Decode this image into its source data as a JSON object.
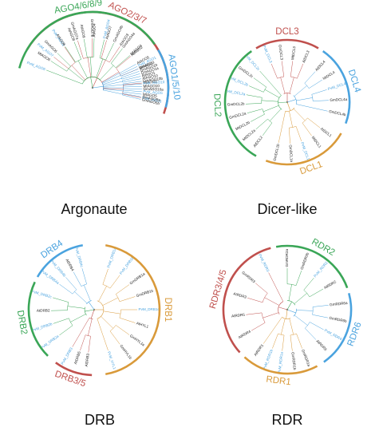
{
  "colors": {
    "red": "#c0504d",
    "blue": "#4aa3df",
    "green": "#3aa657",
    "orange": "#d99a3a",
    "text": "#222222",
    "leafBlue": "#4aa3df"
  },
  "panels": [
    {
      "title": "Argonaute",
      "clades": [
        {
          "label": "AGO2/3/7",
          "color": "red",
          "leaves": [
            "PvM_AGO7",
            "PvM_AGO2",
            "GmAGO7a",
            "GmAGO7b",
            "AtAGO7",
            "AtAGO3",
            "AtAGO2",
            "GmAGO3",
            "MtAGO2",
            "PvM_AGO3"
          ]
        },
        {
          "label": "AGO1/5/10",
          "color": "blue",
          "leaves": [
            "GmAGO5b",
            "GmAGO5a",
            "MtAGO5",
            "PvM_AGO5",
            "GmAGO10a",
            "MtAGO10",
            "PvM_AGO10",
            "GmAGO10b",
            "AtAGO10",
            "AtAGO1",
            "GmAGO1a",
            "GmAGO1b",
            "MtAGO1",
            "PvM_AGO1",
            "AtAGO5"
          ]
        },
        {
          "label": "AGO4/6/8/9",
          "color": "green",
          "leaves": [
            "MtAGO4",
            "GmAGO4a",
            "GmAGO4b",
            "PvM_AGO4",
            "AtAGO4",
            "AtAGO9",
            "AtAGO8",
            "AtAGO6",
            "GmAGO6",
            "MtAGO6",
            "PvM_AGO6"
          ]
        }
      ]
    },
    {
      "title": "Dicer-like",
      "clades": [
        {
          "label": "DCL3",
          "color": "red",
          "leaves": [
            "PvM_DCL3",
            "GmDCL3",
            "MtDCL3",
            "AtDCL3"
          ]
        },
        {
          "label": "DCL4",
          "color": "blue",
          "leaves": [
            "AtDCL4",
            "MtDCL4",
            "PvM_DCL4",
            "GmDCL4a",
            "GmDCL4b"
          ]
        },
        {
          "label": "DCL1",
          "color": "orange",
          "leaves": [
            "AtDCL1",
            "MtDCL1",
            "PvM_DCL1",
            "GmDCL1a",
            "GmDCL1b"
          ]
        },
        {
          "label": "DCL2",
          "color": "green",
          "leaves": [
            "AtDCL2",
            "MtDCL2a",
            "MtDCL2b",
            "GmDCL2a",
            "GmDCL2b",
            "PvM_DCL2a",
            "PvM_DCL2b",
            "GmDCL2c",
            "PvM_DCL2c"
          ]
        }
      ]
    },
    {
      "title": "DRB",
      "clades": [
        {
          "label": "DRB1",
          "color": "orange",
          "leaves": [
            "PvM_DRB1a",
            "PvM_DRB1b",
            "GmDRB1a",
            "GmDRB1b",
            "PvM_DRB1c",
            "AtHYL1",
            "GmHYL1a",
            "GmHYL1b",
            "PvM_HYL1"
          ]
        },
        {
          "label": "DRB3/5",
          "color": "red",
          "leaves": [
            "AtDRB3",
            "AtDRB5",
            "PvM_DRB3"
          ]
        },
        {
          "label": "DRB2",
          "color": "green",
          "leaves": [
            "PvM_DRB2a",
            "PvM_DRB2b",
            "AtDRB2",
            "PvM_DRB2c"
          ]
        },
        {
          "label": "DRB4",
          "color": "blue",
          "leaves": [
            "PvM_DRB4a",
            "PvM_DRB4b",
            "AtDRB4",
            "PvM_DRB4c"
          ]
        }
      ]
    },
    {
      "title": "RDR",
      "clades": [
        {
          "label": "RDR2",
          "color": "green",
          "leaves": [
            "GmRDR2a",
            "GmRDR2b",
            "PvM_RDR2",
            "AtRDR2"
          ]
        },
        {
          "label": "RDR6",
          "color": "blue",
          "leaves": [
            "GmRDR6a",
            "GmRDR6b",
            "PvM_RDR6",
            "AtRDR6"
          ]
        },
        {
          "label": "RDR1",
          "color": "orange",
          "leaves": [
            "GmRDR1a",
            "GmRDR1b",
            "PvM_RDR1a",
            "PvM_RDR1b",
            "AtRDR1"
          ]
        },
        {
          "label": "RDR3/4/5",
          "color": "red",
          "leaves": [
            "AtRDR4",
            "AtRDR5",
            "AtRDR3",
            "GmRDR3",
            "PvM_RDR3"
          ]
        }
      ]
    }
  ]
}
